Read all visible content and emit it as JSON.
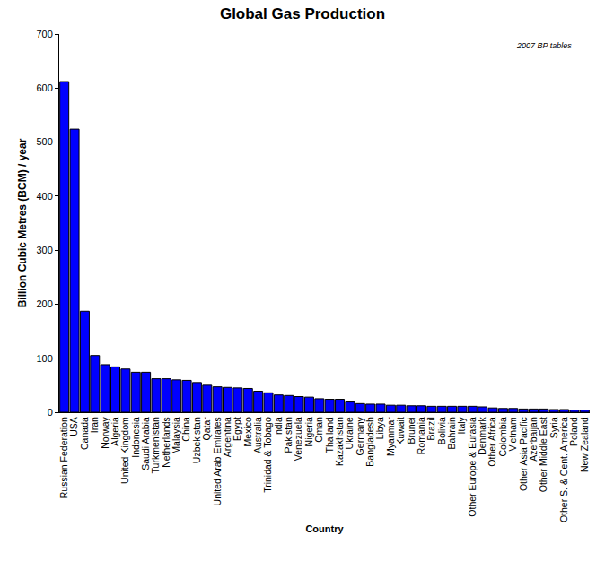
{
  "chart_data": {
    "type": "bar",
    "title": "Global Gas Production",
    "annotation": "2007 BP tables",
    "x_label": "Country",
    "y_label": "Billion Cubic Metres (BCM) / year",
    "categories": [
      "Russian Federation",
      "USA",
      "Canada",
      "Iran",
      "Norway",
      "Algeria",
      "United Kingdom",
      "Indonesia",
      "Saudi Arabia",
      "Turkmenistan",
      "Netherlands",
      "Malaysia",
      "China",
      "Uzbekistan",
      "Qatar",
      "United Arab Emirates",
      "Argentina",
      "Egypt",
      "Mexico",
      "Australia",
      "Trinidad & Tobago",
      "India",
      "Pakistan",
      "Venezuela",
      "Nigeria",
      "Oman",
      "Thailand",
      "Kazakhstan",
      "Ukraine",
      "Germany",
      "Bangladesh",
      "Libya",
      "Myanmar",
      "Kuwait",
      "Brunei",
      "Romania",
      "Brazil",
      "Bolivia",
      "Bahrain",
      "Italy",
      "Other Europe & Eurasia",
      "Denmark",
      "Other Africa",
      "Colombia",
      "Vietnam",
      "Other Asia Pacific",
      "Azerbaijan",
      "Other Middle East",
      "Syria",
      "Other S. & Cent. America",
      "Poland",
      "New Zealand"
    ],
    "values": [
      612,
      524,
      187,
      105,
      88,
      84,
      80,
      74,
      74,
      62,
      62,
      60,
      59,
      55,
      50,
      47,
      46,
      45,
      44,
      39,
      36,
      32,
      31,
      29,
      28,
      25,
      24,
      24,
      19,
      16,
      15,
      15,
      13,
      13,
      12,
      12,
      11,
      11,
      11,
      11,
      11,
      10,
      8,
      7,
      7,
      6,
      6,
      6,
      5,
      5,
      4,
      4
    ],
    "color": "#0000ff",
    "ylim": [
      0,
      700
    ],
    "yticks": [
      0,
      100,
      200,
      300,
      400,
      500,
      600,
      700
    ],
    "grid": false
  }
}
